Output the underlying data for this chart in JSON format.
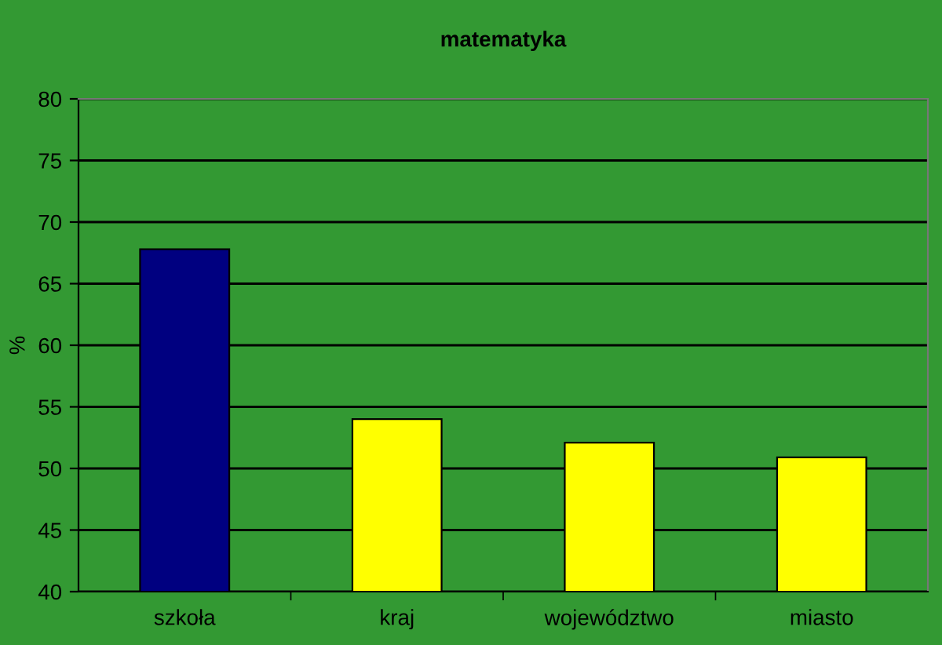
{
  "chart_data": {
    "type": "bar",
    "title": "matematyka",
    "ylabel": "%",
    "categories": [
      "szkoła",
      "kraj",
      "województwo",
      "miasto"
    ],
    "values": [
      67.8,
      54.0,
      52.1,
      50.9
    ],
    "colors": [
      "#000080",
      "#ffff00",
      "#ffff00",
      "#ffff00"
    ],
    "ylim": [
      40,
      80
    ],
    "yticks": [
      40,
      45,
      50,
      55,
      60,
      65,
      70,
      75,
      80
    ],
    "grid": "y",
    "legend": false
  }
}
